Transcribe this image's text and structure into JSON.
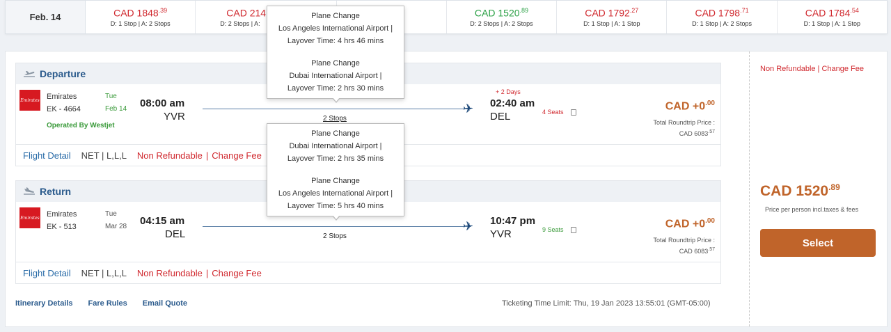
{
  "date_strip": {
    "label": "Feb. 14",
    "cells": [
      {
        "price": "CAD 1848",
        "cents": ".39",
        "stops": "D: 1 Stop | A: 2 Stops",
        "color": "#d0282e"
      },
      {
        "price": "CAD 214",
        "cents": "",
        "stops": "D: 2 Stops | A:",
        "color": "#d0282e"
      },
      {
        "price": "",
        "cents": "",
        "stops": "",
        "color": "#d0282e"
      },
      {
        "price": "CAD 1520",
        "cents": ".89",
        "stops": "D: 2 Stops | A: 2 Stops",
        "color": "#2aa045"
      },
      {
        "price": "CAD 1792",
        "cents": ".27",
        "stops": "D: 1 Stop | A: 1 Stop",
        "color": "#d0282e"
      },
      {
        "price": "CAD 1798",
        "cents": ".71",
        "stops": "D: 1 Stop | A: 2 Stops",
        "color": "#d0282e"
      },
      {
        "price": "CAD 1784",
        "cents": ".54",
        "stops": "D: 1 Stop | A: 1 Stop",
        "color": "#d0282e"
      }
    ]
  },
  "departure": {
    "title": "Departure",
    "airline": "Emirates",
    "flight": "EK - 4664",
    "operated_by": "Operated By Westjet",
    "day": "Tue",
    "date": "Feb 14",
    "dep_time": "08:00 am",
    "dep_code": "YVR",
    "stops": "2 Stops",
    "plus_days": "+ 2 Days",
    "arr_time": "02:40 am",
    "arr_code": "DEL",
    "seats": "4 Seats",
    "price": "CAD +0",
    "cents": ".00",
    "total_label": "Total Roundtrip Price :",
    "total_value": "CAD 6083",
    "total_cents": ".57",
    "footer": {
      "detail": "Flight Detail",
      "fare": "NET | L,L,L",
      "nonref": "Non Refundable",
      "sep": "|",
      "change": "Change Fee"
    }
  },
  "return": {
    "title": "Return",
    "airline": "Emirates",
    "flight": "EK - 513",
    "day": "Tue",
    "date": "Mar 28",
    "dep_time": "04:15 am",
    "dep_code": "DEL",
    "stops": "2 Stops",
    "arr_time": "10:47 pm",
    "arr_code": "YVR",
    "seats": "9 Seats",
    "price": "CAD +0",
    "cents": ".00",
    "total_label": "Total Roundtrip Price :",
    "total_value": "CAD 6083",
    "total_cents": ".57",
    "footer": {
      "detail": "Flight Detail",
      "fare": "NET | L,L,L",
      "nonref": "Non Refundable",
      "sep": "|",
      "change": "Change Fee"
    }
  },
  "tooltip_departure": [
    {
      "l1": "Plane Change",
      "l2": "Los Angeles International Airport |",
      "l3": "Layover Time: 4 hrs 46 mins"
    },
    {
      "l1": "Plane Change",
      "l2": "Dubai International Airport |",
      "l3": "Layover Time: 2 hrs 30 mins"
    }
  ],
  "tooltip_return": [
    {
      "l1": "Plane Change",
      "l2": "Dubai International Airport |",
      "l3": "Layover Time: 2 hrs 35 mins"
    },
    {
      "l1": "Plane Change",
      "l2": "Los Angeles International Airport |",
      "l3": "Layover Time: 5 hrs 40 mins"
    }
  ],
  "bottom_links": {
    "itinerary": "Itinerary Details",
    "fare_rules": "Fare Rules",
    "email": "Email Quote"
  },
  "ticket_limit": "Ticketing Time Limit: Thu, 19 Jan 2023 13:55:01 (GMT-05:00)",
  "summary": {
    "policy": "Non Refundable | Change Fee",
    "price": "CAD 1520",
    "cents": ".89",
    "per_person": "Price per person incl.taxes & fees",
    "select": "Select"
  },
  "colors": {
    "accent": "#c0642a",
    "red": "#d0282e",
    "green": "#2aa045",
    "blue": "#2a5a8c"
  }
}
